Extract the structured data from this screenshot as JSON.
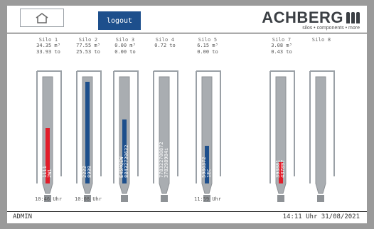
{
  "header": {
    "logout_label": "logout",
    "brand_name": "ACHBERG",
    "brand_tagline": "silos • components • more"
  },
  "footer": {
    "user": "ADMIN",
    "clock": "14:11 Uhr   31/08/2021"
  },
  "colors": {
    "fill_red": "#e11d2a",
    "fill_blue": "#1d4f8c",
    "silo_gray": "#a9adb1"
  },
  "silos": [
    {
      "name": "Silo 1",
      "v1": "34.35 m³",
      "v2": "33.93 to",
      "label_a": "1111",
      "label_b": "2W1",
      "fill_color": "red",
      "fill_level": 0.52,
      "foot_time": "10:46 Uhr"
    },
    {
      "name": "Silo 2",
      "v1": "77.55 m³",
      "v2": "25.53 to",
      "label_a": "2222",
      "label_b": "8908",
      "fill_color": "blue",
      "fill_level": 0.95,
      "foot_time": "10:08 Uhr"
    },
    {
      "name": "Silo 3",
      "v1": "0.00 m³",
      "v2": "0.00 to",
      "label_a": "E45MQEW",
      "label_b": "88432730632",
      "fill_color": "blue",
      "fill_level": 0.6,
      "foot_time": ""
    },
    {
      "name": "Silo 4",
      "v1": "0.72 to",
      "v2": "",
      "label_a": "778322708872",
      "label_b": "378298984i",
      "fill_color": "none",
      "fill_level": 0,
      "foot_time": ""
    },
    {
      "name": "Silo 5",
      "v1": "6.15 m³",
      "v2": "0.00 to",
      "label_a": "5986372",
      "label_b": "1EC",
      "fill_color": "blue",
      "fill_level": 0.35,
      "foot_time": "11:59 Uhr"
    },
    {
      "name": "Silo 7",
      "v1": "3.08 m³",
      "v2": "0.43 to",
      "label_a": "393881",
      "label_b": "437897",
      "fill_color": "red",
      "fill_level": 0.2,
      "foot_time": ""
    },
    {
      "name": "Silo 8",
      "v1": "",
      "v2": "",
      "label_a": "",
      "label_b": "",
      "fill_color": "none",
      "fill_level": 0,
      "foot_time": ""
    }
  ]
}
